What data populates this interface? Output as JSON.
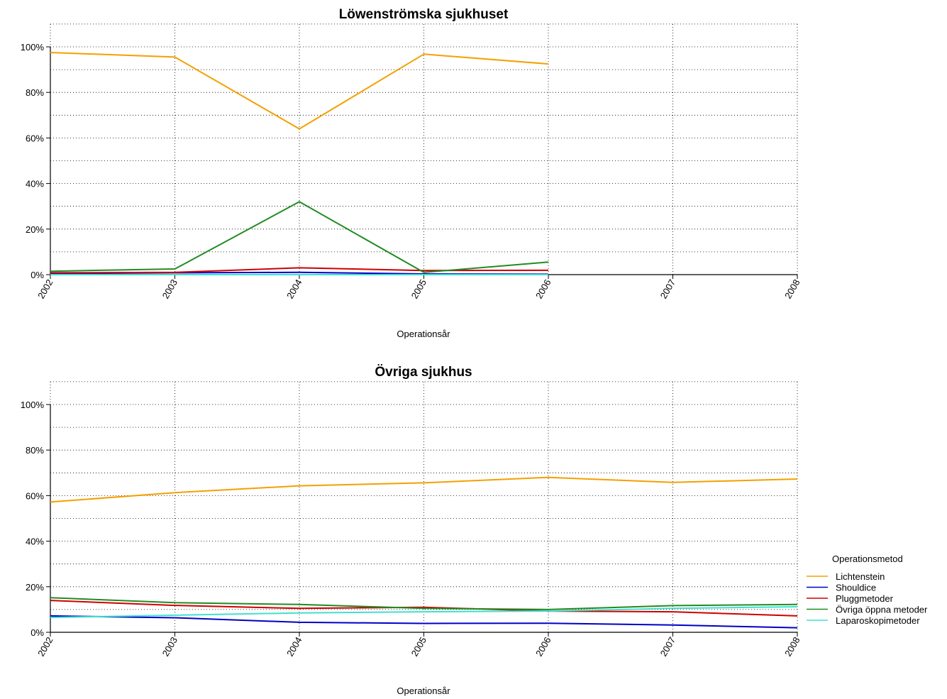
{
  "chart_data": [
    {
      "type": "line",
      "title": "Löwenströmska sjukhuset",
      "xlabel": "Operationsår",
      "ylabel": "",
      "x": [
        "2002",
        "2003",
        "2004",
        "2005",
        "2006",
        "2007",
        "2008"
      ],
      "ylim": [
        0,
        1
      ],
      "yticks": [
        "0%",
        "20%",
        "40%",
        "60%",
        "80%",
        "100%"
      ],
      "grid": true,
      "series": [
        {
          "name": "Lichtenstein",
          "color": "#f5a000",
          "values": [
            0.975,
            0.955,
            0.64,
            0.968,
            0.925,
            null,
            null
          ]
        },
        {
          "name": "Shouldice",
          "color": "#0000c8",
          "values": [
            0.005,
            0.008,
            0.01,
            0.003,
            0.002,
            null,
            null
          ]
        },
        {
          "name": "Pluggmetoder",
          "color": "#d00000",
          "values": [
            0.008,
            0.01,
            0.03,
            0.018,
            0.019,
            null,
            null
          ]
        },
        {
          "name": "Övriga öppna metoder",
          "color": "#228b22",
          "values": [
            0.015,
            0.025,
            0.32,
            0.01,
            0.055,
            null,
            null
          ]
        },
        {
          "name": "Laparoskopimetoder",
          "color": "#40e0d0",
          "values": [
            0.0,
            0.0,
            0.0,
            0.0,
            0.0,
            null,
            null
          ]
        }
      ]
    },
    {
      "type": "line",
      "title": "Övriga sjukhus",
      "xlabel": "Operationsår",
      "ylabel": "",
      "x": [
        "2002",
        "2003",
        "2004",
        "2005",
        "2006",
        "2007",
        "2008"
      ],
      "ylim": [
        0,
        1
      ],
      "yticks": [
        "0%",
        "20%",
        "40%",
        "60%",
        "80%",
        "100%"
      ],
      "grid": true,
      "legend_position": "right",
      "legend_title": "Operationsmetod",
      "series": [
        {
          "name": "Lichtenstein",
          "color": "#f5a000",
          "values": [
            0.572,
            0.613,
            0.643,
            0.656,
            0.68,
            0.658,
            0.673
          ]
        },
        {
          "name": "Shouldice",
          "color": "#0000c8",
          "values": [
            0.072,
            0.064,
            0.044,
            0.039,
            0.04,
            0.032,
            0.02
          ]
        },
        {
          "name": "Pluggmetoder",
          "color": "#d00000",
          "values": [
            0.14,
            0.118,
            0.105,
            0.11,
            0.093,
            0.09,
            0.072
          ]
        },
        {
          "name": "Övriga öppna metoder",
          "color": "#228b22",
          "values": [
            0.152,
            0.13,
            0.122,
            0.105,
            0.1,
            0.117,
            0.122
          ]
        },
        {
          "name": "Laparoskopimetoder",
          "color": "#40e0d0",
          "values": [
            0.065,
            0.075,
            0.085,
            0.09,
            0.093,
            0.105,
            0.112
          ]
        }
      ]
    }
  ]
}
